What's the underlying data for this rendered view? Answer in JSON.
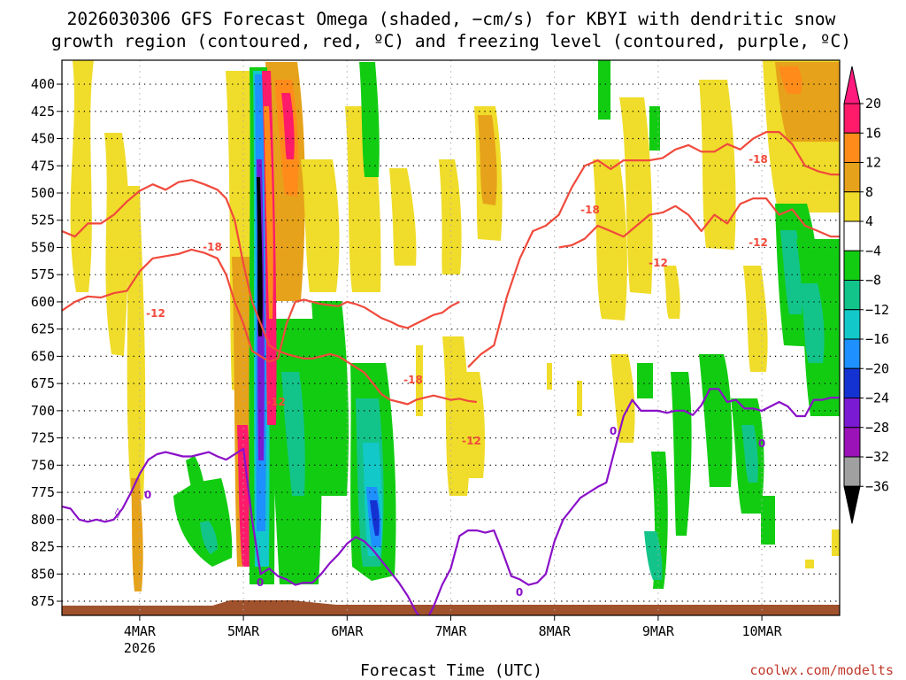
{
  "chart_data": {
    "type": "heatmap",
    "title_line1": "2026030306 GFS Forecast Omega (shaded, −cm/s) for KBYI with dendritic snow",
    "title_line2": "growth region (contoured, red, ºC) and freezing level (contoured, purple, ºC)",
    "xlabel": "Forecast Time (UTC)",
    "credit": "coolwx.com/modelts",
    "x_ticks": [
      {
        "label": "4MAR",
        "sub": "2026",
        "hour": 18
      },
      {
        "label": "5MAR",
        "sub": "",
        "hour": 42
      },
      {
        "label": "6MAR",
        "sub": "",
        "hour": 66
      },
      {
        "label": "7MAR",
        "sub": "",
        "hour": 90
      },
      {
        "label": "8MAR",
        "sub": "",
        "hour": 114
      },
      {
        "label": "9MAR",
        "sub": "",
        "hour": 138
      },
      {
        "label": "10MAR",
        "sub": "",
        "hour": 162
      }
    ],
    "x_range_hours": [
      0,
      180
    ],
    "y_ticks": [
      400,
      425,
      450,
      475,
      500,
      525,
      550,
      575,
      600,
      625,
      650,
      675,
      700,
      725,
      750,
      775,
      800,
      825,
      850,
      875
    ],
    "y_range_hPa": [
      378,
      888
    ],
    "colorbar": {
      "labels": [
        "20",
        "16",
        "12",
        "8",
        "4",
        "−4",
        "−8",
        "−12",
        "−16",
        "−20",
        "−24",
        "−28",
        "−32",
        "−36"
      ],
      "colors": [
        "#ff1a6a",
        "#ff8c1a",
        "#e6a21a",
        "#f0dc2a",
        "#ffffff",
        "#12cc12",
        "#12c48a",
        "#12c8c8",
        "#1e90ff",
        "#1432d2",
        "#7a1ad2",
        "#9a12b8",
        "#a0a0a0"
      ],
      "top_arrow_color": "#ff1a7e",
      "bottom_arrow_color": "#000000"
    },
    "contour_labels": {
      "dgz_minus18": "-18",
      "dgz_minus12": "-12",
      "freezing": "0"
    },
    "series": [
      {
        "name": "-18C isotherm (early)",
        "color": "#f04a3c",
        "x": [
          0,
          3,
          6,
          9,
          12,
          15,
          18,
          21,
          24,
          27,
          30,
          33,
          36,
          38,
          40,
          42,
          44,
          46,
          48,
          50,
          52,
          54,
          56,
          58,
          60,
          62,
          64,
          66,
          68,
          70,
          72,
          74,
          76,
          78,
          80,
          82,
          84,
          86,
          88,
          90,
          92,
          94,
          96
        ],
        "y": [
          535,
          540,
          528,
          528,
          520,
          508,
          498,
          492,
          497,
          490,
          488,
          492,
          497,
          505,
          525,
          565,
          600,
          620,
          640,
          645,
          648,
          650,
          652,
          652,
          650,
          648,
          650,
          655,
          660,
          665,
          675,
          685,
          690,
          692,
          694,
          690,
          688,
          686,
          688,
          690,
          689,
          691,
          692
        ]
      },
      {
        "name": "-12C isotherm (early)",
        "color": "#f04a3c",
        "x": [
          0,
          3,
          6,
          9,
          12,
          15,
          18,
          21,
          24,
          27,
          30,
          33,
          36,
          38,
          40,
          42,
          44,
          46,
          48,
          50,
          52,
          54,
          56,
          58,
          60,
          62,
          64,
          66,
          68,
          70,
          72,
          74,
          76,
          78,
          80,
          82,
          84,
          86,
          88,
          90,
          92
        ],
        "y": [
          608,
          600,
          595,
          596,
          592,
          590,
          572,
          560,
          558,
          556,
          552,
          555,
          560,
          575,
          600,
          620,
          645,
          650,
          655,
          652,
          620,
          600,
          598,
          600,
          602,
          603,
          604,
          600,
          602,
          605,
          610,
          615,
          618,
          622,
          624,
          620,
          616,
          612,
          610,
          604,
          600
        ]
      },
      {
        "name": "-18C isotherm (late)",
        "color": "#f04a3c",
        "x": [
          94,
          97,
          100,
          103,
          106,
          109,
          112,
          115,
          118,
          121,
          124,
          127,
          130,
          133,
          136,
          139,
          142,
          145,
          148,
          151,
          154,
          157,
          160,
          163,
          166,
          169,
          172,
          175,
          178,
          180
        ],
        "y": [
          660,
          648,
          640,
          595,
          560,
          535,
          530,
          520,
          495,
          475,
          470,
          478,
          470,
          470,
          470,
          468,
          460,
          456,
          462,
          462,
          455,
          460,
          450,
          444,
          444,
          455,
          475,
          480,
          483,
          483
        ]
      },
      {
        "name": "-12C isotherm (late)",
        "color": "#f04a3c",
        "x": [
          115,
          118,
          121,
          124,
          127,
          130,
          133,
          136,
          139,
          142,
          145,
          148,
          151,
          154,
          157,
          160,
          163,
          166,
          169,
          172,
          175,
          178,
          180
        ],
        "y": [
          550,
          548,
          542,
          530,
          535,
          540,
          530,
          520,
          518,
          512,
          520,
          535,
          520,
          528,
          510,
          505,
          505,
          520,
          515,
          530,
          535,
          540,
          540
        ]
      },
      {
        "name": "0C freezing level",
        "color": "#8a10c8",
        "x": [
          0,
          2,
          4,
          6,
          8,
          10,
          12,
          14,
          16,
          18,
          20,
          22,
          24,
          26,
          28,
          30,
          32,
          34,
          36,
          38,
          40,
          42,
          44,
          46,
          48,
          50,
          52,
          54,
          56,
          58,
          60,
          62,
          64,
          66,
          68,
          70,
          72,
          74,
          76,
          78,
          80,
          82,
          84,
          86,
          88,
          90,
          92,
          94,
          96,
          98,
          100,
          102,
          104,
          106,
          108,
          110,
          112,
          114,
          116,
          118,
          120,
          122,
          124,
          126,
          128,
          130,
          132,
          134,
          136,
          138,
          140,
          142,
          144,
          146,
          148,
          150,
          152,
          154,
          156,
          158,
          160,
          162,
          164,
          166,
          168,
          170,
          172,
          174,
          176,
          178,
          180
        ],
        "y": [
          788,
          790,
          800,
          802,
          800,
          802,
          800,
          790,
          775,
          758,
          745,
          740,
          738,
          740,
          742,
          742,
          740,
          738,
          742,
          745,
          740,
          735,
          800,
          850,
          845,
          852,
          855,
          860,
          858,
          858,
          850,
          840,
          832,
          822,
          816,
          820,
          828,
          838,
          848,
          858,
          870,
          885,
          895,
          880,
          860,
          845,
          815,
          810,
          810,
          812,
          810,
          830,
          852,
          855,
          860,
          858,
          850,
          820,
          800,
          790,
          780,
          775,
          770,
          766,
          735,
          705,
          690,
          700,
          700,
          700,
          702,
          700,
          700,
          704,
          695,
          680,
          680,
          692,
          690,
          698,
          698,
          700,
          696,
          692,
          696,
          705,
          705,
          690,
          690,
          688,
          688
        ]
      }
    ]
  }
}
